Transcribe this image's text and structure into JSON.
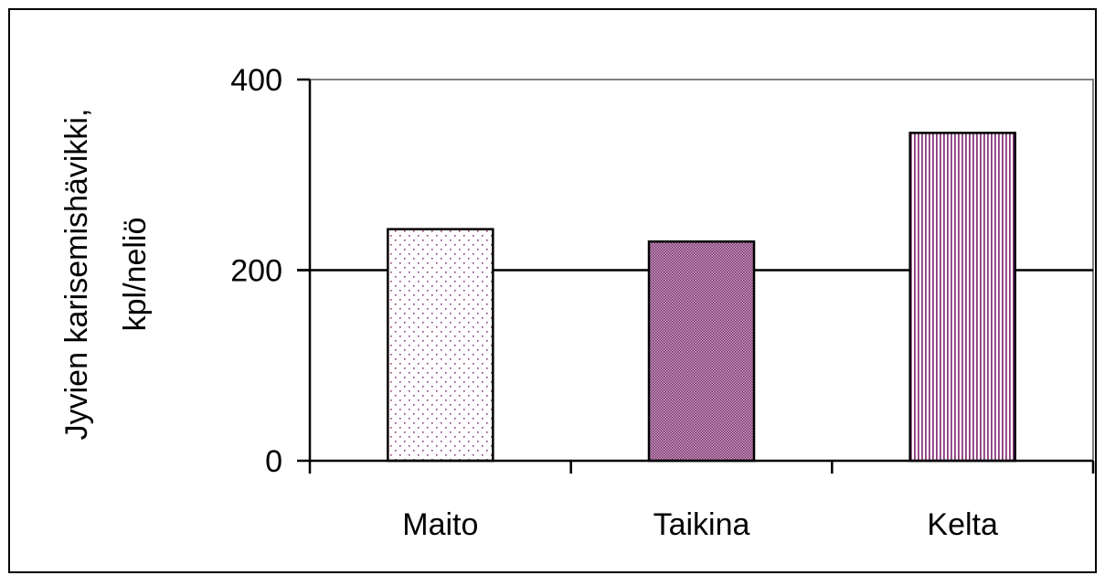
{
  "chart_data": {
    "type": "bar",
    "categories": [
      "Maito",
      "Taikina",
      "Kelta"
    ],
    "values": [
      243,
      230,
      344
    ],
    "ylabel_lines": [
      "Jyvien karisemishävikki,",
      "kpl/neliö"
    ],
    "yticks": [
      "0",
      "200",
      "400"
    ],
    "ylim": [
      0,
      400
    ],
    "gridlines": [
      200
    ],
    "legend": "none",
    "bar_patterns": [
      "dots",
      "crosshatch-fine",
      "vertical-lines"
    ],
    "colors": {
      "pattern": "#8b3a7e",
      "bar_fill": "#ffffff",
      "grid": "#000000",
      "plot_border": "#808080"
    }
  }
}
